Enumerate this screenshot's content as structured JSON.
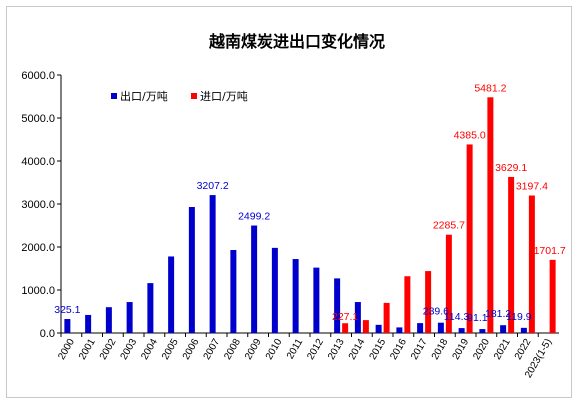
{
  "chart_data": {
    "type": "bar",
    "title": "越南煤炭进出口变化情况",
    "xlabel": "",
    "ylabel": "",
    "ylim": [
      0,
      6000
    ],
    "yticks": [
      "0.0",
      "1000.0",
      "2000.0",
      "3000.0",
      "4000.0",
      "5000.0",
      "6000.0"
    ],
    "grid": false,
    "legend_position": "top-left",
    "categories": [
      "2000",
      "2001",
      "2002",
      "2003",
      "2004",
      "2005",
      "2006",
      "2007",
      "2008",
      "2009",
      "2010",
      "2011",
      "2012",
      "2013",
      "2014",
      "2015",
      "2016",
      "2017",
      "2018",
      "2019",
      "2020",
      "2021",
      "2022",
      "2023(1-5)"
    ],
    "series": [
      {
        "name": "出口/万吨",
        "color": "#0000cc",
        "values": [
          325.1,
          420,
          600,
          720,
          1160,
          1780,
          2930,
          3207.2,
          1930,
          2499.2,
          1980,
          1720,
          1520,
          1270,
          720,
          190,
          130,
          230,
          239.6,
          114.3,
          91.1,
          181.2,
          119.9,
          null
        ]
      },
      {
        "name": "进口/万吨",
        "color": "#ff0000",
        "values": [
          null,
          null,
          null,
          null,
          null,
          null,
          null,
          null,
          null,
          null,
          null,
          null,
          null,
          227.1,
          300,
          700,
          1320,
          1440,
          2285.7,
          4385.0,
          5481.2,
          3629.1,
          3197.4,
          1701.7
        ]
      }
    ],
    "data_labels": [
      {
        "series": 0,
        "index": 0,
        "text": "325.1"
      },
      {
        "series": 0,
        "index": 7,
        "text": "3207.2"
      },
      {
        "series": 0,
        "index": 9,
        "text": "2499.2"
      },
      {
        "series": 1,
        "index": 13,
        "text": "227.1"
      },
      {
        "series": 0,
        "index": 18,
        "text": "239.6"
      },
      {
        "series": 0,
        "index": 19,
        "text": "114.3"
      },
      {
        "series": 0,
        "index": 20,
        "text": "91.1"
      },
      {
        "series": 0,
        "index": 21,
        "text": "181.2"
      },
      {
        "series": 0,
        "index": 22,
        "text": "119.9"
      },
      {
        "series": 1,
        "index": 18,
        "text": "2285.7"
      },
      {
        "series": 1,
        "index": 19,
        "text": "4385.0"
      },
      {
        "series": 1,
        "index": 20,
        "text": "5481.2"
      },
      {
        "series": 1,
        "index": 21,
        "text": "3629.1"
      },
      {
        "series": 1,
        "index": 22,
        "text": "3197.4"
      },
      {
        "series": 1,
        "index": 23,
        "text": "1701.7"
      }
    ]
  }
}
